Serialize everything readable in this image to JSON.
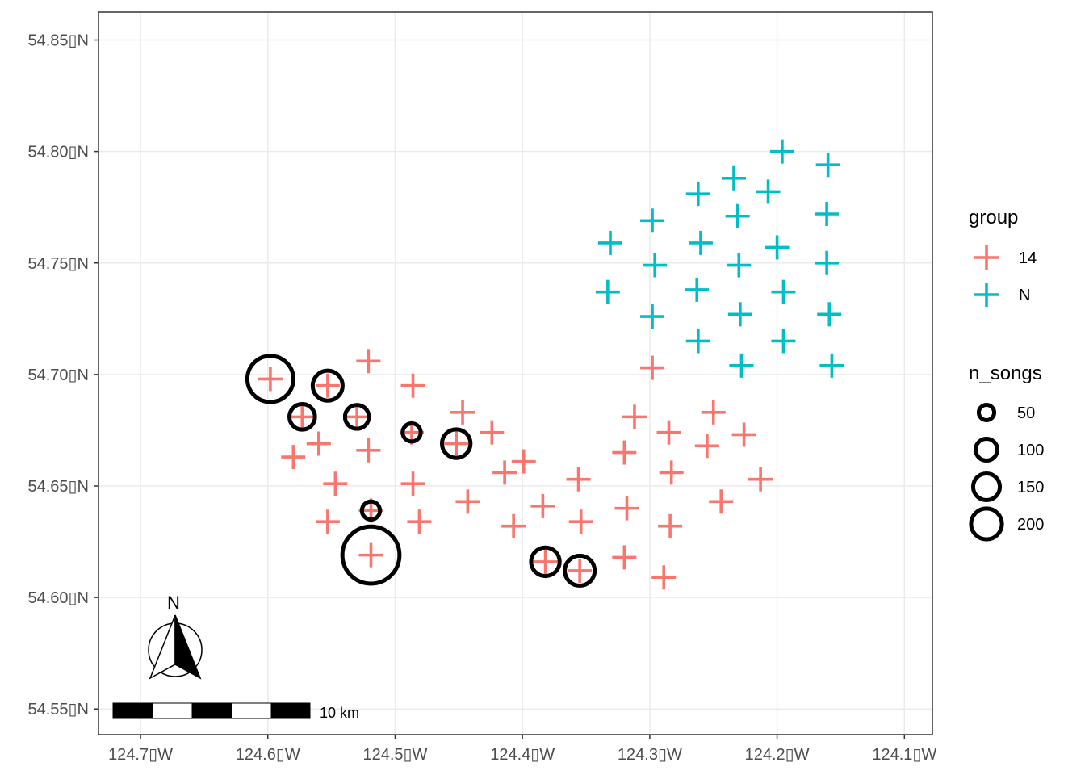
{
  "chart_data": {
    "type": "scatter",
    "title": "",
    "xlabel": "",
    "ylabel": "",
    "xlim": [
      -124.733,
      -124.078
    ],
    "ylim": [
      54.5385,
      54.8625
    ],
    "grid": true,
    "x_ticks": [
      {
        "value": -124.7,
        "label": "124.7▯W"
      },
      {
        "value": -124.6,
        "label": "124.6▯W"
      },
      {
        "value": -124.5,
        "label": "124.5▯W"
      },
      {
        "value": -124.4,
        "label": "124.4▯W"
      },
      {
        "value": -124.3,
        "label": "124.3▯W"
      },
      {
        "value": -124.2,
        "label": "124.2▯W"
      },
      {
        "value": -124.1,
        "label": "124.1▯W"
      }
    ],
    "y_ticks": [
      {
        "value": 54.55,
        "label": "54.55▯N"
      },
      {
        "value": 54.6,
        "label": "54.60▯N"
      },
      {
        "value": 54.65,
        "label": "54.65▯N"
      },
      {
        "value": 54.7,
        "label": "54.70▯N"
      },
      {
        "value": 54.75,
        "label": "54.75▯N"
      },
      {
        "value": 54.8,
        "label": "54.80▯N"
      },
      {
        "value": 54.85,
        "label": "54.85▯N"
      }
    ],
    "series": [
      {
        "name": "14",
        "color": "#F8766D",
        "points": [
          [
            -124.598,
            54.698
          ],
          [
            -124.553,
            54.695
          ],
          [
            -124.521,
            54.706
          ],
          [
            -124.486,
            54.695
          ],
          [
            -124.573,
            54.681
          ],
          [
            -124.53,
            54.681
          ],
          [
            -124.487,
            54.674
          ],
          [
            -124.447,
            54.683
          ],
          [
            -124.452,
            54.669
          ],
          [
            -124.424,
            54.674
          ],
          [
            -124.56,
            54.669
          ],
          [
            -124.521,
            54.666
          ],
          [
            -124.58,
            54.663
          ],
          [
            -124.547,
            54.651
          ],
          [
            -124.486,
            54.651
          ],
          [
            -124.414,
            54.656
          ],
          [
            -124.399,
            54.661
          ],
          [
            -124.443,
            54.643
          ],
          [
            -124.519,
            54.639
          ],
          [
            -124.553,
            54.634
          ],
          [
            -124.481,
            54.634
          ],
          [
            -124.407,
            54.632
          ],
          [
            -124.384,
            54.641
          ],
          [
            -124.356,
            54.653
          ],
          [
            -124.354,
            54.634
          ],
          [
            -124.519,
            54.619
          ],
          [
            -124.382,
            54.616
          ],
          [
            -124.355,
            54.612
          ],
          [
            -124.32,
            54.665
          ],
          [
            -124.318,
            54.64
          ],
          [
            -124.32,
            54.618
          ],
          [
            -124.289,
            54.609
          ],
          [
            -124.312,
            54.681
          ],
          [
            -124.298,
            54.703
          ],
          [
            -124.285,
            54.674
          ],
          [
            -124.283,
            54.656
          ],
          [
            -124.284,
            54.632
          ],
          [
            -124.255,
            54.668
          ],
          [
            -124.25,
            54.683
          ],
          [
            -124.244,
            54.643
          ],
          [
            -124.226,
            54.673
          ],
          [
            -124.213,
            54.653
          ]
        ]
      },
      {
        "name": "N",
        "color": "#00BFC4",
        "points": [
          [
            -124.196,
            54.8
          ],
          [
            -124.16,
            54.794
          ],
          [
            -124.234,
            54.788
          ],
          [
            -124.207,
            54.782
          ],
          [
            -124.262,
            54.781
          ],
          [
            -124.161,
            54.772
          ],
          [
            -124.231,
            54.771
          ],
          [
            -124.298,
            54.769
          ],
          [
            -124.331,
            54.759
          ],
          [
            -124.26,
            54.759
          ],
          [
            -124.2,
            54.757
          ],
          [
            -124.161,
            54.75
          ],
          [
            -124.23,
            54.749
          ],
          [
            -124.296,
            54.749
          ],
          [
            -124.263,
            54.738
          ],
          [
            -124.195,
            54.737
          ],
          [
            -124.333,
            54.737
          ],
          [
            -124.159,
            54.727
          ],
          [
            -124.229,
            54.727
          ],
          [
            -124.298,
            54.726
          ],
          [
            -124.262,
            54.715
          ],
          [
            -124.195,
            54.715
          ],
          [
            -124.228,
            54.704
          ],
          [
            -124.157,
            54.704
          ]
        ]
      }
    ],
    "song_circles": [
      {
        "x": -124.598,
        "y": 54.698,
        "n_songs": 130
      },
      {
        "x": -124.553,
        "y": 54.695,
        "n_songs": 55
      },
      {
        "x": -124.573,
        "y": 54.681,
        "n_songs": 40
      },
      {
        "x": -124.53,
        "y": 54.681,
        "n_songs": 35
      },
      {
        "x": -124.487,
        "y": 54.674,
        "n_songs": 20
      },
      {
        "x": -124.452,
        "y": 54.669,
        "n_songs": 50
      },
      {
        "x": -124.519,
        "y": 54.639,
        "n_songs": 20
      },
      {
        "x": -124.519,
        "y": 54.619,
        "n_songs": 200
      },
      {
        "x": -124.382,
        "y": 54.616,
        "n_songs": 50
      },
      {
        "x": -124.355,
        "y": 54.612,
        "n_songs": 55
      }
    ],
    "legend_placement": "right",
    "legend_group": {
      "title": "group",
      "entries": [
        {
          "label": "14",
          "color": "#F8766D"
        },
        {
          "label": "N",
          "color": "#00BFC4"
        }
      ]
    },
    "legend_size": {
      "title": "n_songs",
      "entries": [
        {
          "label": "50",
          "value": 50
        },
        {
          "label": "100",
          "value": 100
        },
        {
          "label": "150",
          "value": 150
        },
        {
          "label": "200",
          "value": 200
        }
      ]
    },
    "scale_bar": {
      "label": "10 km"
    },
    "north_arrow": {
      "label": "N"
    }
  }
}
